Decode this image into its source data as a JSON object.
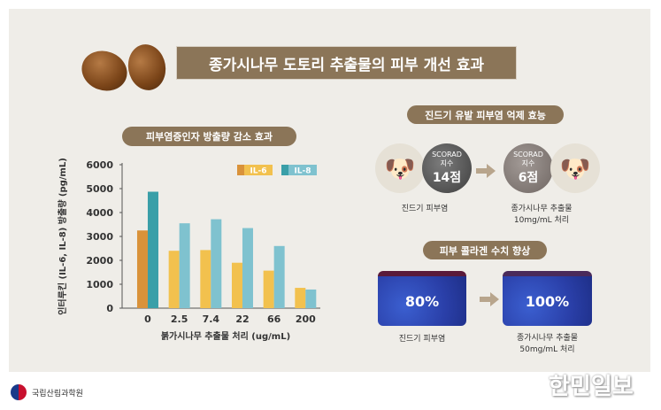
{
  "header": {
    "title": "종가시나무 도토리 추출물의 피부 개선 효과"
  },
  "chart_data": {
    "type": "bar",
    "title": "피부염증인자 방출량 감소 효과",
    "xlabel": "붉가시나무 추출물 처리 (ug/mL)",
    "ylabel": "인터루킨 (IL-6, IL-8) 방출량 (pg/mL)",
    "categories": [
      "0",
      "2.5",
      "7.4",
      "22",
      "66",
      "200"
    ],
    "ylim": [
      0,
      6000
    ],
    "yticks": [
      "0",
      "1000",
      "2000",
      "3000",
      "4000",
      "5000",
      "6000"
    ],
    "legend_position": "top-right",
    "grid": false,
    "series": [
      {
        "name": "IL-6",
        "values": [
          3250,
          2400,
          2430,
          1900,
          1570,
          850
        ],
        "color": "#f2c14e",
        "control_color": "#d9923a"
      },
      {
        "name": "IL-8",
        "values": [
          4870,
          3550,
          3720,
          3350,
          2600,
          780
        ],
        "color": "#7fc2cf",
        "control_color": "#3a9fa8"
      }
    ]
  },
  "mite": {
    "title": "진드기 유발 피부염 억제 효능",
    "before": {
      "index_label": "SCORAD",
      "index_sub": "지수",
      "score": "14점",
      "caption": "진드기 피부염"
    },
    "after": {
      "index_label": "SCORAD",
      "index_sub": "지수",
      "score": "6점",
      "caption1": "종가시나무 추출물",
      "caption2": "10mg/mL 처리"
    }
  },
  "collagen": {
    "title": "피부 콜라겐 수치 향상",
    "before": {
      "value": "80%",
      "caption": "진드기 피부염"
    },
    "after": {
      "value": "100%",
      "caption1": "종가시나무 추출물",
      "caption2": "50mg/mL 처리"
    }
  },
  "footer": {
    "org": "국립산림과학원",
    "watermark": "한민일보"
  },
  "colors": {
    "brown": "#8b7558",
    "background": "#efede8"
  }
}
